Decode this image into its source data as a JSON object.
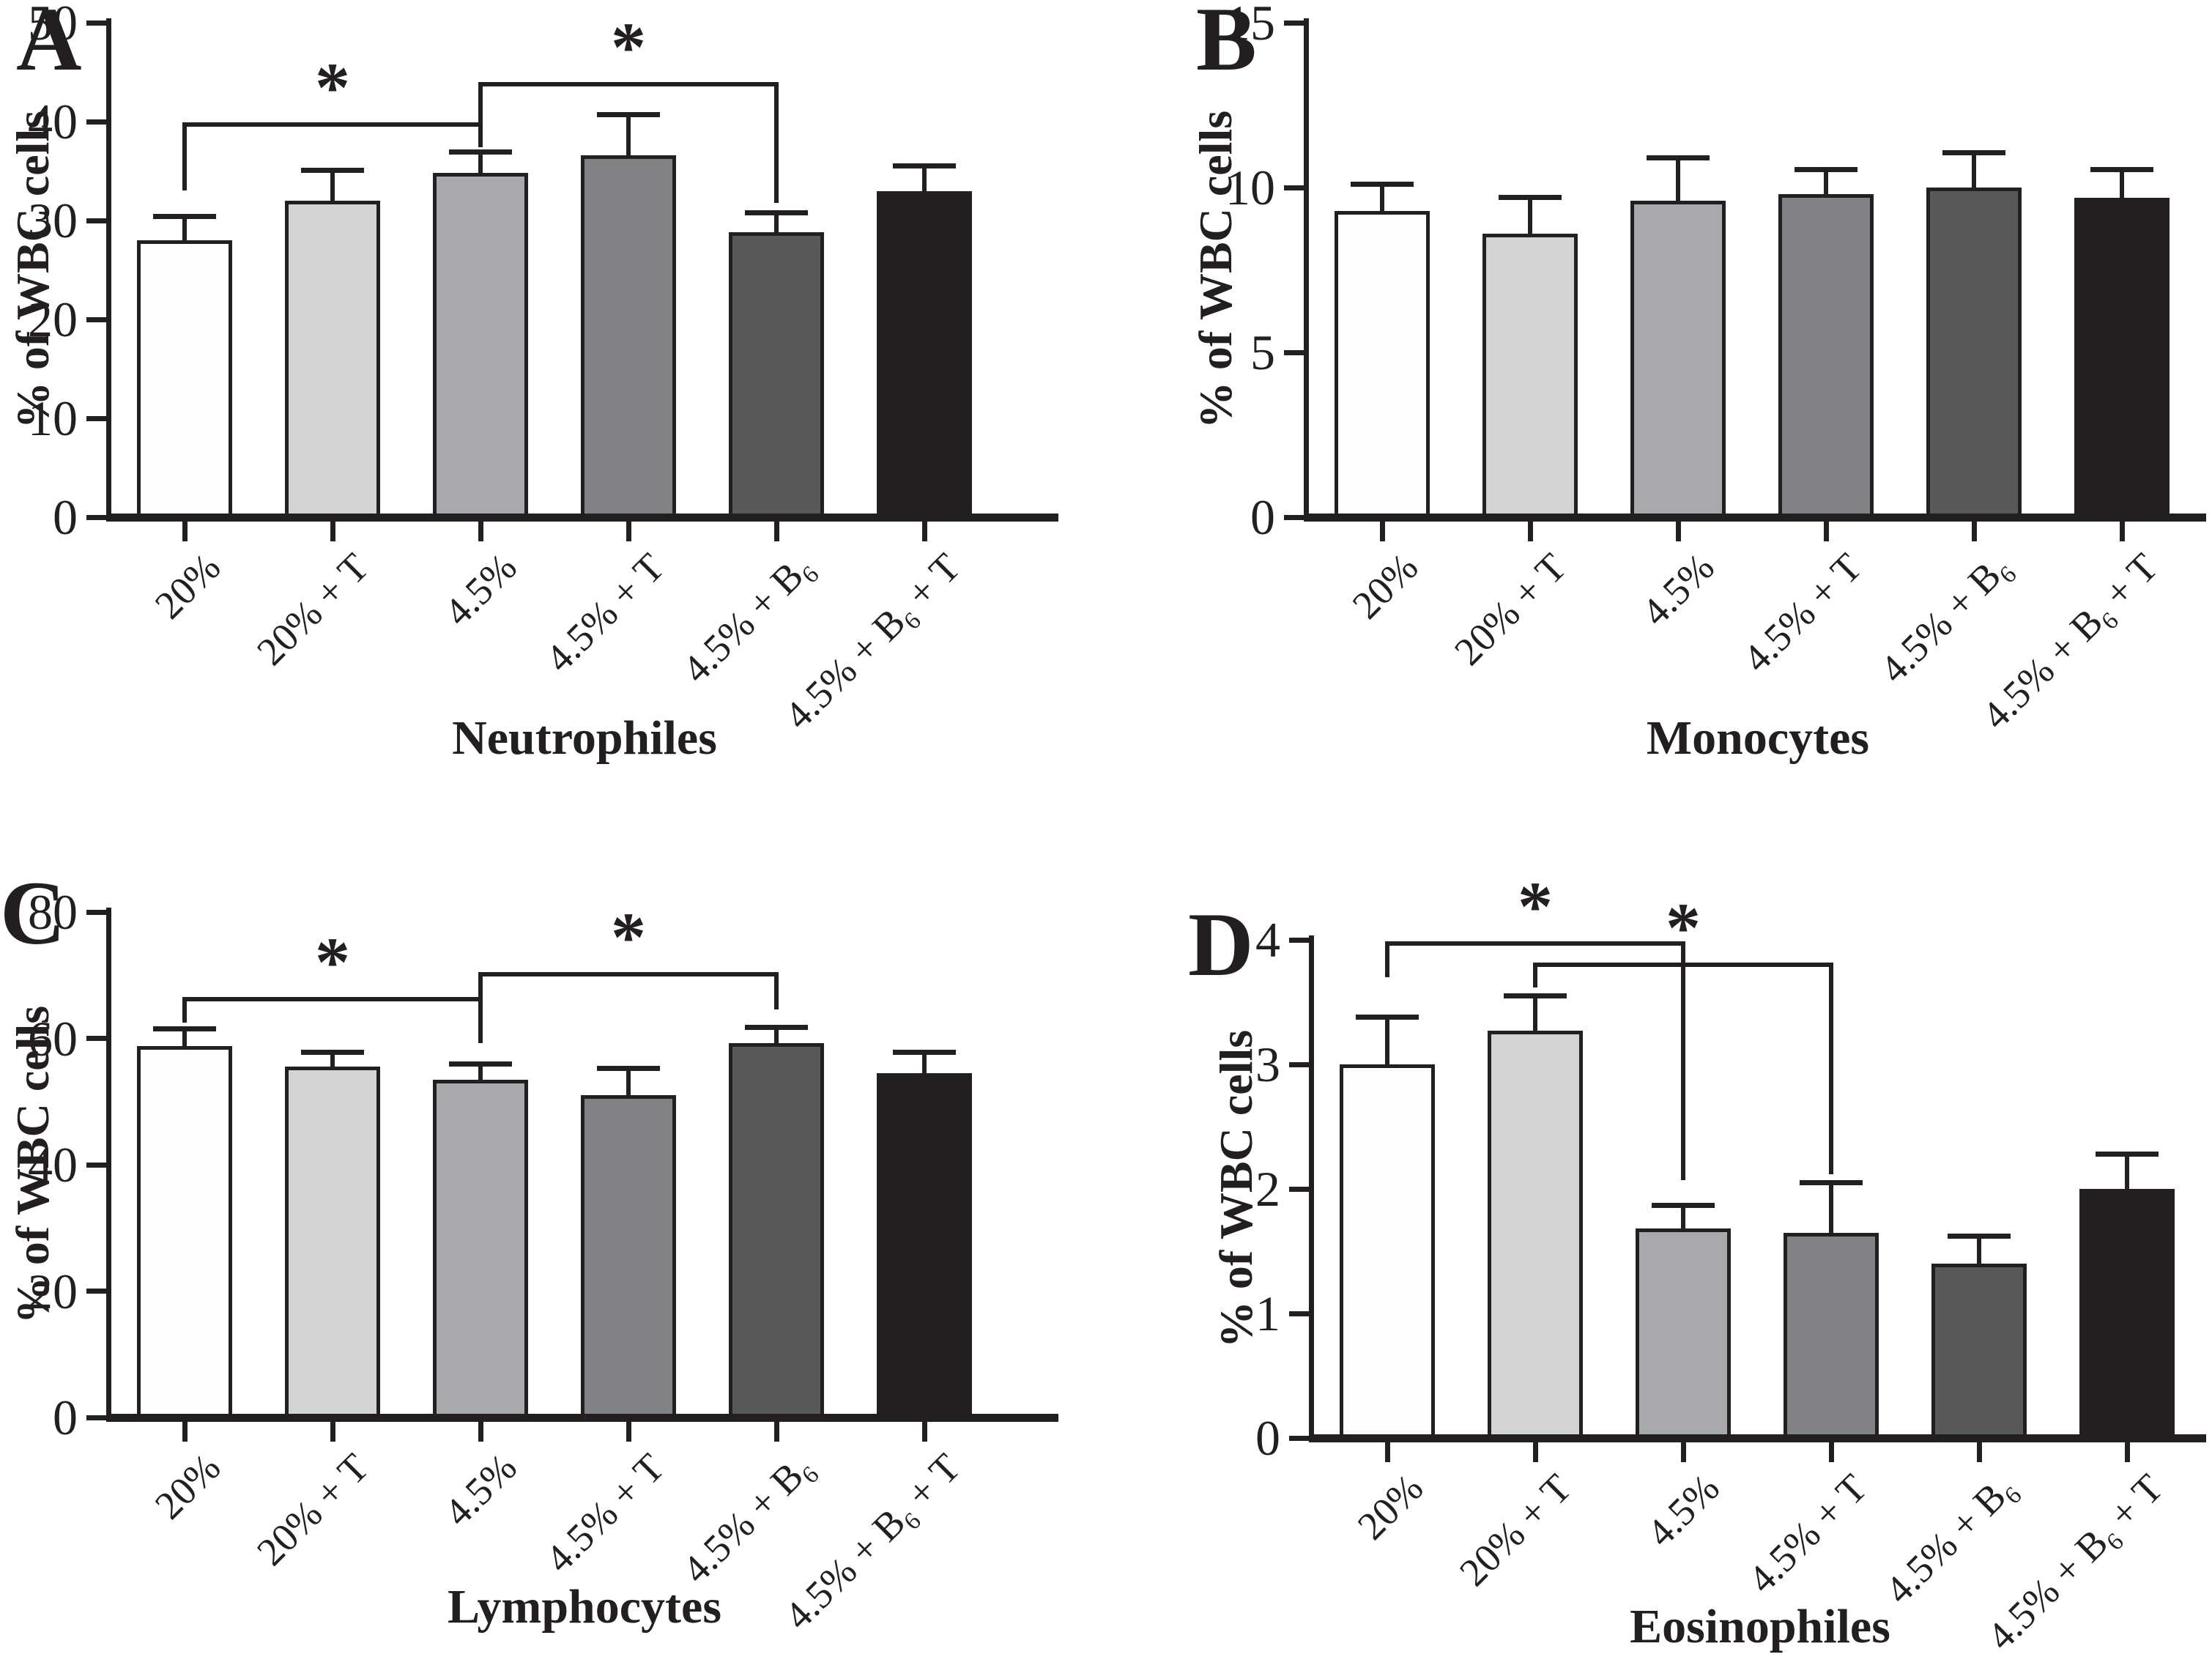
{
  "figure_bg": "#ffffff",
  "ink_color": "#231f20",
  "bar_fill_colors": [
    "#fefefe",
    "#d1d3d4",
    "#a7a9ac",
    "#808285",
    "#58595b",
    "#231f20"
  ],
  "chart_data": [
    {
      "id": "A",
      "type": "bar",
      "letter": "A",
      "title": "Neutrophiles",
      "ylabel": "% of WBC cells",
      "ylim": [
        0,
        50
      ],
      "yticks": [
        0,
        10,
        20,
        30,
        40,
        50
      ],
      "grid": "off",
      "legend": "none",
      "categories": [
        "20%",
        "20% + T",
        "4.5%",
        "4.5% + T",
        "4.5% + B₆",
        "4.5% + B₆ + T"
      ],
      "values": [
        28.0,
        32.0,
        34.8,
        36.6,
        28.8,
        33.0
      ],
      "errors_plus": [
        2.4,
        3.1,
        2.1,
        4.1,
        2.0,
        2.5
      ],
      "significance": [
        {
          "from": 0,
          "to": 2,
          "bar_y": 39.7,
          "drop_from": 33.0,
          "drop_to": 37.4,
          "star": "*"
        },
        {
          "from": 2,
          "to": 4,
          "bar_y": 43.8,
          "drop_from": 37.4,
          "drop_to": 31.8,
          "star": "*"
        }
      ]
    },
    {
      "id": "B",
      "type": "bar",
      "letter": "B",
      "title": "Monocytes",
      "ylabel": "% of WBC cells",
      "ylim": [
        0,
        15
      ],
      "yticks": [
        0,
        5,
        10,
        15
      ],
      "grid": "off",
      "legend": "none",
      "categories": [
        "20%",
        "20% + T",
        "4.5%",
        "4.5% + T",
        "4.5% + B₆",
        "4.5% + B₆ + T"
      ],
      "values": [
        9.3,
        8.6,
        9.6,
        9.8,
        10.0,
        9.7
      ],
      "errors_plus": [
        0.8,
        1.1,
        1.3,
        0.75,
        1.05,
        0.85
      ],
      "significance": []
    },
    {
      "id": "C",
      "type": "bar",
      "letter": "C",
      "title": "Lymphocytes",
      "ylabel": "% of WBC cells",
      "ylim": [
        0,
        80
      ],
      "yticks": [
        0,
        20,
        40,
        60,
        80
      ],
      "grid": "off",
      "legend": "none",
      "categories": [
        "20%",
        "20% + T",
        "4.5%",
        "4.5% + T",
        "4.5% + B₆",
        "4.5% + B₆ + T"
      ],
      "values": [
        58.8,
        55.5,
        53.5,
        51.0,
        59.2,
        54.5
      ],
      "errors_plus": [
        2.7,
        2.3,
        2.5,
        4.3,
        2.5,
        3.3
      ],
      "significance": [
        {
          "from": 0,
          "to": 2,
          "bar_y": 66.2,
          "drop_from": 62.5,
          "drop_to": 59.3,
          "star": "*"
        },
        {
          "from": 2,
          "to": 4,
          "bar_y": 70.2,
          "drop_from": 62.6,
          "drop_to": 64.6,
          "star": "*"
        }
      ]
    },
    {
      "id": "D",
      "type": "bar",
      "letter": "D",
      "title": "Eosinophiles",
      "ylabel": "% of WBC cells",
      "ylim": [
        0,
        4
      ],
      "yticks": [
        0,
        1,
        2,
        3,
        4
      ],
      "grid": "off",
      "legend": "none",
      "categories": [
        "20%",
        "20% + T",
        "4.5%",
        "4.5% + T",
        "4.5% + B₆",
        "4.5% + B₆ + T"
      ],
      "values": [
        3.0,
        3.27,
        1.68,
        1.65,
        1.4,
        2.0
      ],
      "errors_plus": [
        0.38,
        0.28,
        0.19,
        0.4,
        0.22,
        0.28
      ],
      "significance": [
        {
          "from": 0,
          "to": 2,
          "bar_y": 3.97,
          "drop_from": 3.7,
          "drop_to": 2.07,
          "star": "*"
        },
        {
          "from": 1,
          "to": 3,
          "bar_y": 3.8,
          "drop_from": 3.62,
          "drop_to": 2.12,
          "star": "*"
        }
      ]
    }
  ]
}
